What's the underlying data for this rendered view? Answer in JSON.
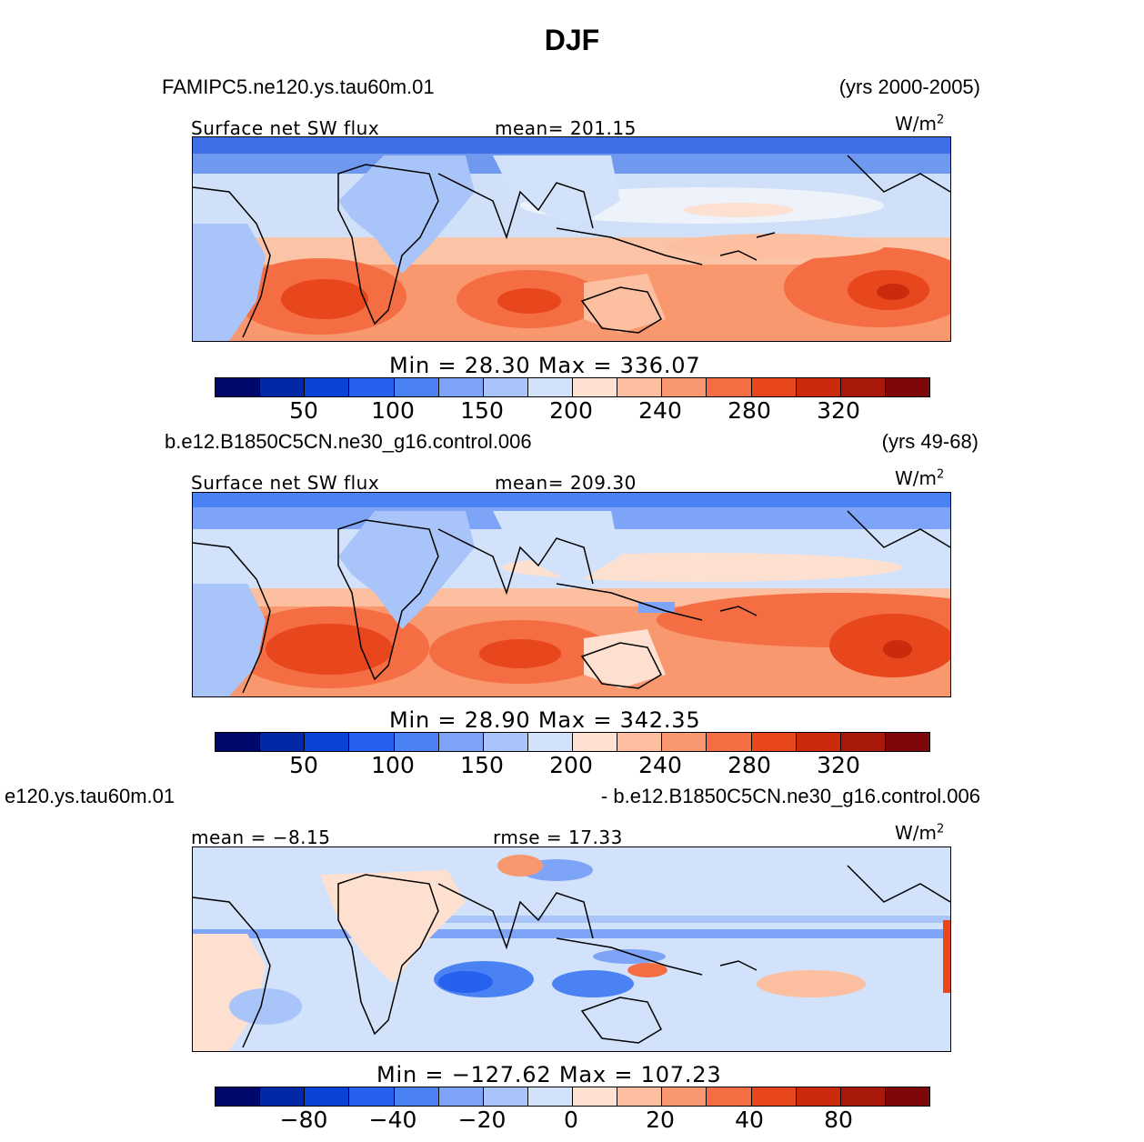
{
  "title": "DJF",
  "panels": [
    {
      "case_name": "FAMIPC5.ne120.ys.tau60m.01",
      "years": "(yrs 2000-2005)",
      "left_label": "Surface net SW flux",
      "center_label": "mean= 201.15",
      "units": "W/m",
      "units_sup": "2",
      "minmax": "Min =   28.30  Max  =  336.07",
      "ticks": [
        "50",
        "100",
        "150",
        "200",
        "240",
        "280",
        "320"
      ]
    },
    {
      "case_name": "b.e12.B1850C5CN.ne30_g16.control.006",
      "years": "(yrs 49-68)",
      "left_label": "Surface net SW flux",
      "center_label": "mean= 209.30",
      "units": "W/m",
      "units_sup": "2",
      "minmax": "Min =   28.90  Max  =  342.35",
      "ticks": [
        "50",
        "100",
        "150",
        "200",
        "240",
        "280",
        "320"
      ]
    },
    {
      "case_name": "e120.ys.tau60m.01",
      "years": "- b.e12.B1850C5CN.ne30_g16.control.006",
      "left_label": "mean =   −8.15",
      "center_label": "rmse =   17.33",
      "units": "W/m",
      "units_sup": "2",
      "minmax": "Min  =  −127.62  Max  =  107.23",
      "ticks": [
        "−80",
        "−40",
        "−20",
        "0",
        "20",
        "40",
        "80"
      ]
    }
  ],
  "colorbar_colors": [
    "#00086b",
    "#0228a8",
    "#0a44d6",
    "#2660ee",
    "#4a82f4",
    "#7ea4f7",
    "#a9c4f8",
    "#d2e2fa",
    "#fde0cf",
    "#fcbf9f",
    "#f9986e",
    "#f46d43",
    "#e8461d",
    "#cc2a0c",
    "#a8180b",
    "#7d0709"
  ]
}
